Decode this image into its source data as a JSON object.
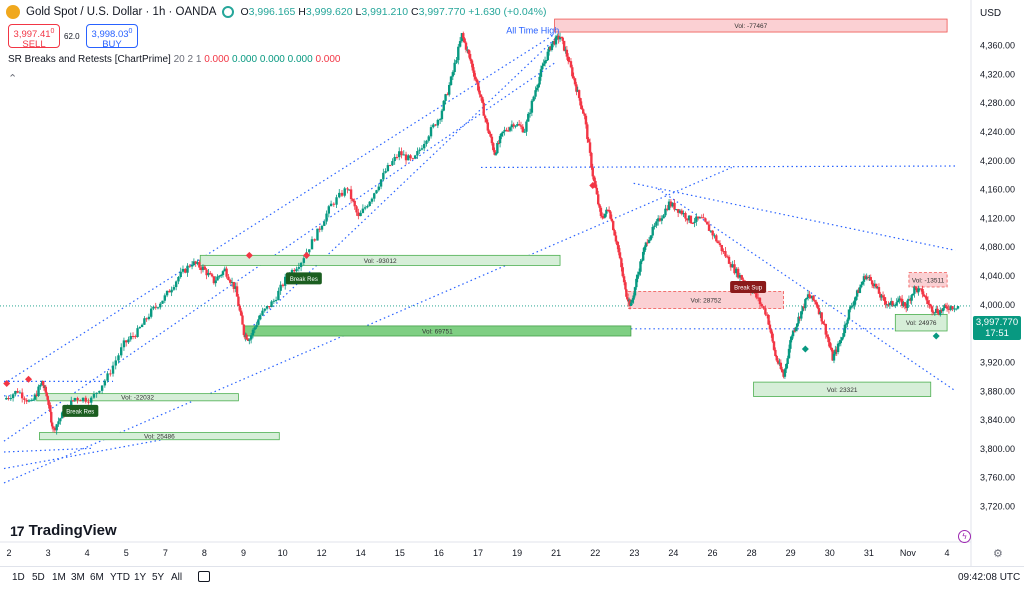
{
  "header": {
    "symbol_title": "Gold Spot / U.S. Dollar · 1h · OANDA",
    "ohlc": [
      {
        "label": "O",
        "value": "3,996.165"
      },
      {
        "label": "H",
        "value": "3,999.620"
      },
      {
        "label": "L",
        "value": "3,991.210"
      },
      {
        "label": "C",
        "value": "3,997.770"
      },
      {
        "label": "",
        "value": "+1.630 (+0.04%)"
      }
    ],
    "sell_price": "3,997.41",
    "sell_price_sup": "0",
    "sell_label": "SELL",
    "buy_price": "3,998.03",
    "buy_price_sup": "0",
    "buy_label": "BUY",
    "spread": "62.0",
    "currency": "USD"
  },
  "indicator": {
    "name": "SR Breaks and Retests [ChartPrime]",
    "params": "20 2 1",
    "values": [
      "0.000",
      "0.000",
      "0.000",
      "0.000",
      "0.000"
    ],
    "value_colors": [
      "#f23645",
      "#089981",
      "#089981",
      "#089981",
      "#f23645"
    ]
  },
  "colors": {
    "up": "#089981",
    "down": "#f23645",
    "dotted_line": "#2962ff",
    "green_zone": "#c8e6c9",
    "red_zone": "#ffcdd2"
  },
  "chart_data": {
    "type": "candlestick",
    "title": "Gold Spot / U.S. Dollar · 1h · OANDA",
    "y_axis_ticks": [
      3720,
      3760,
      3800,
      3840,
      3880,
      3920,
      3960,
      4000,
      4040,
      4080,
      4120,
      4160,
      4200,
      4240,
      4280,
      4320,
      4360
    ],
    "y_tick_labels": [
      "3,720.00",
      "3,760.00",
      "3,800.00",
      "3,840.00",
      "3,880.00",
      "3,920.00",
      "3,960.00",
      "4,000.00",
      "4,040.00",
      "4,080.00",
      "4,120.00",
      "4,160.00",
      "4,200.00",
      "4,240.00",
      "4,280.00",
      "4,320.00",
      "4,360.00"
    ],
    "ylim": [
      3700,
      4390
    ],
    "x_tick_labels": [
      "2",
      "3",
      "4",
      "5",
      "7",
      "8",
      "9",
      "10",
      "12",
      "14",
      "15",
      "16",
      "17",
      "19",
      "21",
      "22",
      "23",
      "24",
      "26",
      "28",
      "29",
      "30",
      "31",
      "Nov",
      "4"
    ],
    "last_price": "3,997.770",
    "countdown": "17:51",
    "price_path": [
      [
        0,
        3868
      ],
      [
        0.5,
        3880
      ],
      [
        1.0,
        3862
      ],
      [
        1.4,
        3892
      ],
      [
        1.6,
        3870
      ],
      [
        1.8,
        3826
      ],
      [
        2.2,
        3850
      ],
      [
        2.6,
        3870
      ],
      [
        3.2,
        3868
      ],
      [
        3.8,
        3900
      ],
      [
        4.4,
        3945
      ],
      [
        4.9,
        3962
      ],
      [
        5.4,
        3990
      ],
      [
        5.9,
        4010
      ],
      [
        6.4,
        4038
      ],
      [
        6.9,
        4058
      ],
      [
        7.3,
        4050
      ],
      [
        7.7,
        4032
      ],
      [
        8.1,
        4048
      ],
      [
        8.5,
        4020
      ],
      [
        8.8,
        3960
      ],
      [
        9.0,
        3952
      ],
      [
        9.4,
        3985
      ],
      [
        9.9,
        4005
      ],
      [
        10.4,
        4040
      ],
      [
        10.9,
        4060
      ],
      [
        11.5,
        4100
      ],
      [
        12.0,
        4138
      ],
      [
        12.6,
        4162
      ],
      [
        13.0,
        4120
      ],
      [
        13.5,
        4150
      ],
      [
        14.0,
        4185
      ],
      [
        14.5,
        4210
      ],
      [
        15.0,
        4198
      ],
      [
        15.5,
        4232
      ],
      [
        16.0,
        4262
      ],
      [
        16.4,
        4312
      ],
      [
        16.8,
        4374
      ],
      [
        17.1,
        4340
      ],
      [
        17.4,
        4300
      ],
      [
        17.7,
        4250
      ],
      [
        18.0,
        4210
      ],
      [
        18.3,
        4238
      ],
      [
        18.7,
        4252
      ],
      [
        19.1,
        4242
      ],
      [
        19.5,
        4298
      ],
      [
        19.8,
        4334
      ],
      [
        20.1,
        4362
      ],
      [
        20.4,
        4372
      ],
      [
        20.7,
        4340
      ],
      [
        21.0,
        4300
      ],
      [
        21.3,
        4260
      ],
      [
        21.6,
        4180
      ],
      [
        21.9,
        4120
      ],
      [
        22.2,
        4132
      ],
      [
        22.5,
        4082
      ],
      [
        22.8,
        4018
      ],
      [
        23.0,
        3998
      ],
      [
        23.3,
        4050
      ],
      [
        23.6,
        4090
      ],
      [
        24.0,
        4115
      ],
      [
        24.4,
        4140
      ],
      [
        24.8,
        4130
      ],
      [
        25.2,
        4116
      ],
      [
        25.6,
        4118
      ],
      [
        26.0,
        4098
      ],
      [
        26.4,
        4072
      ],
      [
        26.8,
        4048
      ],
      [
        27.2,
        4030
      ],
      [
        27.6,
        4010
      ],
      [
        28.0,
        3985
      ],
      [
        28.3,
        3928
      ],
      [
        28.6,
        3900
      ],
      [
        28.9,
        3958
      ],
      [
        29.2,
        3985
      ],
      [
        29.5,
        4012
      ],
      [
        29.8,
        4002
      ],
      [
        30.1,
        3970
      ],
      [
        30.4,
        3925
      ],
      [
        30.7,
        3950
      ],
      [
        31.0,
        3990
      ],
      [
        31.3,
        4015
      ],
      [
        31.6,
        4040
      ],
      [
        31.9,
        4030
      ],
      [
        32.2,
        4008
      ],
      [
        32.5,
        3999
      ],
      [
        32.8,
        4005
      ],
      [
        33.1,
        3998
      ],
      [
        33.4,
        4022
      ],
      [
        33.7,
        4016
      ],
      [
        34.0,
        3995
      ],
      [
        34.3,
        3990
      ],
      [
        34.6,
        3996
      ],
      [
        35.0,
        3998
      ]
    ],
    "n_slots": 35
  },
  "annotations": {
    "all_time_high": "All Time High",
    "zones": [
      {
        "label": "Vol: -77467",
        "kind": "red",
        "x0": 20.2,
        "x1": 34.6,
        "y0": 4378,
        "y1": 4396
      },
      {
        "label": "Vol: -93012",
        "kind": "green",
        "x0": 7.2,
        "x1": 20.4,
        "y0": 4068,
        "y1": 4054
      },
      {
        "label": "Vol: 69751",
        "kind": "green-strong",
        "x0": 8.8,
        "x1": 23.0,
        "y0": 3970,
        "y1": 3956
      },
      {
        "label": "Vol: 28752",
        "kind": "red",
        "x0": 22.9,
        "x1": 28.6,
        "y0": 4018,
        "y1": 3994
      },
      {
        "label": "Vol: -13511",
        "kind": "red",
        "x0": 33.2,
        "x1": 34.6,
        "y0": 4044,
        "y1": 4024
      },
      {
        "label": "Vol: 24976",
        "kind": "green",
        "x0": 32.7,
        "x1": 34.6,
        "y0": 3986,
        "y1": 3963
      },
      {
        "label": "Vol: 23321",
        "kind": "green",
        "x0": 27.5,
        "x1": 34.0,
        "y0": 3892,
        "y1": 3872
      },
      {
        "label": "Vol: -22032",
        "kind": "green",
        "x0": 1.2,
        "x1": 8.6,
        "y0": 3876,
        "y1": 3866
      },
      {
        "label": "Vol: 25486",
        "kind": "green",
        "x0": 1.3,
        "x1": 10.1,
        "y0": 3822,
        "y1": 3812
      }
    ],
    "badges": [
      {
        "label": "Break Res",
        "kind": "green",
        "x": 11.0,
        "y": 4036
      },
      {
        "label": "Break Res",
        "kind": "green",
        "x": 2.8,
        "y": 3852
      },
      {
        "label": "Break Sup",
        "kind": "red",
        "x": 27.3,
        "y": 4024
      }
    ],
    "horizontal_level": 4190
  },
  "bottom_bar": {
    "timeframes": [
      "1D",
      "5D",
      "1M",
      "3M",
      "6M",
      "YTD",
      "1Y",
      "5Y",
      "All"
    ],
    "clock": "09:42:08 UTC"
  },
  "branding": "TradingView"
}
